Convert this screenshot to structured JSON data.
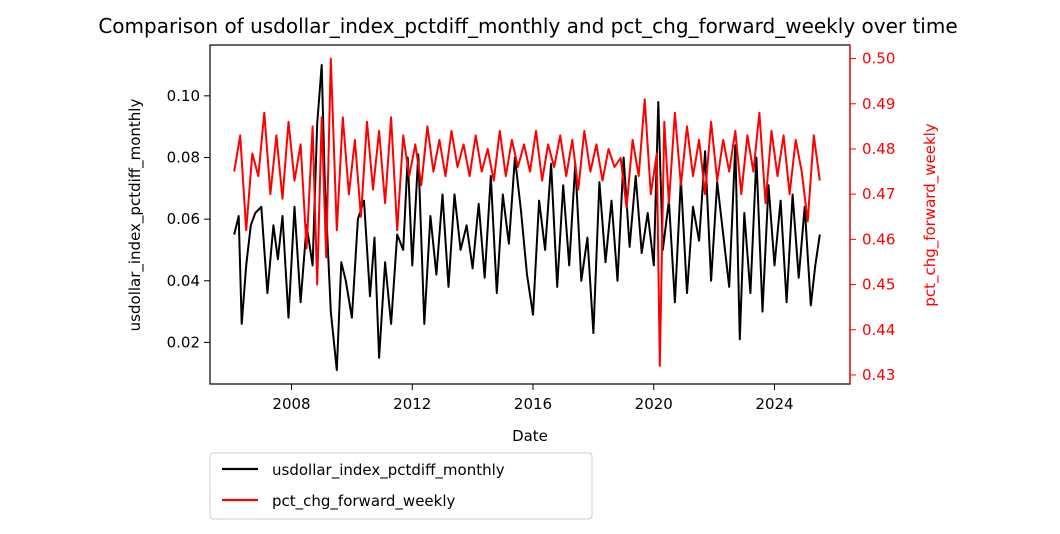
{
  "chart_data": {
    "type": "line",
    "title": "Comparison of usdollar_index_pctdiff_monthly and pct_chg_forward_weekly over time",
    "xlabel": "Date",
    "ylabel_left": "usdollar_index_pctdiff_monthly",
    "ylabel_right": "pct_chg_forward_weekly",
    "xlim": [
      2005.3,
      2026.5
    ],
    "ylim_left": [
      0.0065,
      0.1165
    ],
    "ylim_right": [
      0.428,
      0.503
    ],
    "x_ticks": [
      2008,
      2012,
      2016,
      2020,
      2024
    ],
    "x_tick_labels": [
      "2008",
      "2012",
      "2016",
      "2020",
      "2024"
    ],
    "y_ticks_left": [
      0.02,
      0.04,
      0.06,
      0.08,
      0.1
    ],
    "y_tick_labels_left": [
      "0.02",
      "0.04",
      "0.06",
      "0.08",
      "0.10"
    ],
    "y_ticks_right": [
      0.43,
      0.44,
      0.45,
      0.46,
      0.47,
      0.48,
      0.49,
      0.5
    ],
    "y_tick_labels_right": [
      "0.43",
      "0.44",
      "0.45",
      "0.46",
      "0.47",
      "0.48",
      "0.49",
      "0.50"
    ],
    "grid": false,
    "legend_position": "below-left",
    "series": [
      {
        "name": "usdollar_index_pctdiff_monthly",
        "axis": "left",
        "color": "#000000",
        "x": [
          2006.1,
          2006.25,
          2006.35,
          2006.5,
          2006.65,
          2006.8,
          2007.0,
          2007.2,
          2007.4,
          2007.55,
          2007.7,
          2007.9,
          2008.1,
          2008.3,
          2008.5,
          2008.7,
          2008.85,
          2009.0,
          2009.1,
          2009.3,
          2009.5,
          2009.65,
          2009.8,
          2010.0,
          2010.2,
          2010.4,
          2010.6,
          2010.75,
          2010.9,
          2011.1,
          2011.3,
          2011.5,
          2011.7,
          2011.85,
          2012.0,
          2012.2,
          2012.4,
          2012.6,
          2012.8,
          2013.0,
          2013.2,
          2013.4,
          2013.6,
          2013.8,
          2014.0,
          2014.2,
          2014.4,
          2014.6,
          2014.8,
          2015.0,
          2015.2,
          2015.4,
          2015.6,
          2015.8,
          2016.0,
          2016.2,
          2016.4,
          2016.6,
          2016.8,
          2017.0,
          2017.2,
          2017.4,
          2017.6,
          2017.8,
          2018.0,
          2018.2,
          2018.4,
          2018.6,
          2018.8,
          2019.0,
          2019.2,
          2019.4,
          2019.6,
          2019.8,
          2020.0,
          2020.15,
          2020.3,
          2020.5,
          2020.7,
          2020.9,
          2021.1,
          2021.3,
          2021.5,
          2021.7,
          2021.9,
          2022.1,
          2022.3,
          2022.5,
          2022.7,
          2022.85,
          2023.0,
          2023.2,
          2023.4,
          2023.6,
          2023.8,
          2024.0,
          2024.2,
          2024.4,
          2024.6,
          2024.8,
          2025.0,
          2025.2,
          2025.35,
          2025.5
        ],
        "values": [
          0.055,
          0.061,
          0.026,
          0.045,
          0.058,
          0.062,
          0.064,
          0.036,
          0.058,
          0.047,
          0.061,
          0.028,
          0.064,
          0.033,
          0.058,
          0.045,
          0.091,
          0.11,
          0.073,
          0.03,
          0.011,
          0.046,
          0.04,
          0.028,
          0.06,
          0.066,
          0.035,
          0.054,
          0.015,
          0.046,
          0.026,
          0.055,
          0.05,
          0.08,
          0.045,
          0.081,
          0.026,
          0.061,
          0.042,
          0.068,
          0.038,
          0.068,
          0.05,
          0.058,
          0.044,
          0.065,
          0.041,
          0.074,
          0.036,
          0.068,
          0.052,
          0.08,
          0.063,
          0.042,
          0.029,
          0.066,
          0.05,
          0.078,
          0.038,
          0.071,
          0.045,
          0.078,
          0.04,
          0.054,
          0.023,
          0.072,
          0.046,
          0.066,
          0.04,
          0.08,
          0.051,
          0.074,
          0.049,
          0.062,
          0.045,
          0.098,
          0.05,
          0.066,
          0.033,
          0.073,
          0.036,
          0.064,
          0.053,
          0.082,
          0.04,
          0.072,
          0.055,
          0.038,
          0.084,
          0.021,
          0.062,
          0.036,
          0.08,
          0.03,
          0.071,
          0.045,
          0.066,
          0.033,
          0.068,
          0.041,
          0.064,
          0.032,
          0.045,
          0.055
        ]
      },
      {
        "name": "pct_chg_forward_weekly",
        "axis": "right",
        "color": "#ff0000",
        "x": [
          2006.1,
          2006.3,
          2006.5,
          2006.7,
          2006.9,
          2007.1,
          2007.3,
          2007.5,
          2007.7,
          2007.9,
          2008.1,
          2008.3,
          2008.5,
          2008.7,
          2008.85,
          2009.0,
          2009.15,
          2009.3,
          2009.5,
          2009.7,
          2009.9,
          2010.1,
          2010.3,
          2010.5,
          2010.7,
          2010.9,
          2011.1,
          2011.3,
          2011.5,
          2011.7,
          2011.9,
          2012.1,
          2012.3,
          2012.5,
          2012.7,
          2012.9,
          2013.1,
          2013.3,
          2013.5,
          2013.7,
          2013.9,
          2014.1,
          2014.3,
          2014.5,
          2014.7,
          2014.9,
          2015.1,
          2015.3,
          2015.5,
          2015.7,
          2015.9,
          2016.1,
          2016.3,
          2016.5,
          2016.7,
          2016.9,
          2017.1,
          2017.3,
          2017.5,
          2017.7,
          2017.9,
          2018.1,
          2018.3,
          2018.5,
          2018.7,
          2018.9,
          2019.1,
          2019.3,
          2019.5,
          2019.7,
          2019.9,
          2020.1,
          2020.2,
          2020.35,
          2020.5,
          2020.7,
          2020.9,
          2021.1,
          2021.3,
          2021.5,
          2021.7,
          2021.9,
          2022.1,
          2022.3,
          2022.5,
          2022.7,
          2022.9,
          2023.1,
          2023.3,
          2023.5,
          2023.7,
          2023.9,
          2024.1,
          2024.3,
          2024.5,
          2024.7,
          2024.9,
          2025.1,
          2025.3,
          2025.5
        ],
        "values": [
          0.475,
          0.483,
          0.462,
          0.479,
          0.474,
          0.488,
          0.47,
          0.483,
          0.469,
          0.486,
          0.473,
          0.481,
          0.458,
          0.485,
          0.45,
          0.487,
          0.456,
          0.5,
          0.462,
          0.487,
          0.47,
          0.482,
          0.465,
          0.486,
          0.471,
          0.484,
          0.468,
          0.487,
          0.462,
          0.483,
          0.474,
          0.481,
          0.472,
          0.485,
          0.475,
          0.482,
          0.474,
          0.484,
          0.476,
          0.481,
          0.474,
          0.483,
          0.475,
          0.48,
          0.473,
          0.484,
          0.474,
          0.482,
          0.476,
          0.481,
          0.475,
          0.484,
          0.473,
          0.481,
          0.476,
          0.483,
          0.474,
          0.482,
          0.471,
          0.484,
          0.475,
          0.481,
          0.473,
          0.48,
          0.476,
          0.478,
          0.467,
          0.482,
          0.474,
          0.491,
          0.47,
          0.479,
          0.432,
          0.486,
          0.468,
          0.488,
          0.472,
          0.485,
          0.474,
          0.482,
          0.47,
          0.486,
          0.473,
          0.482,
          0.475,
          0.484,
          0.47,
          0.483,
          0.475,
          0.488,
          0.468,
          0.484,
          0.474,
          0.483,
          0.47,
          0.482,
          0.475,
          0.464,
          0.483,
          0.473
        ]
      }
    ]
  }
}
